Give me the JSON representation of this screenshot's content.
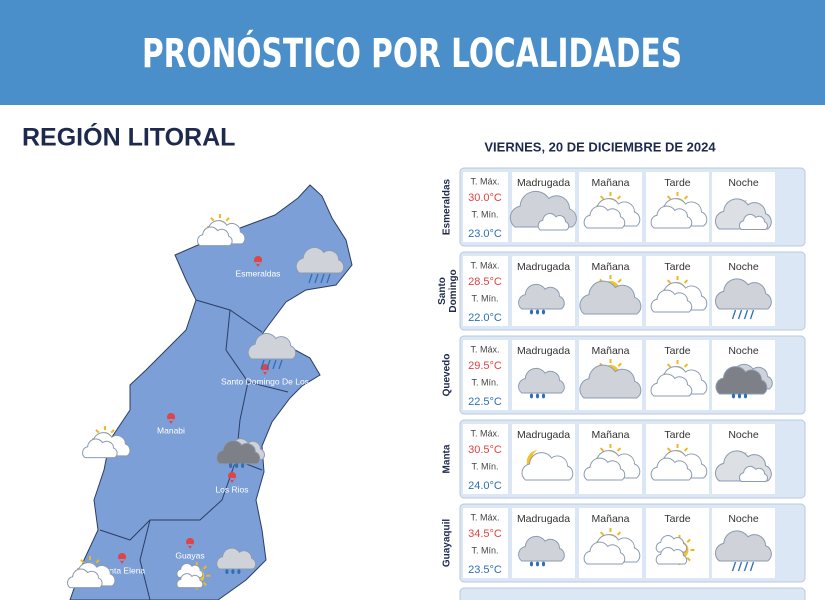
{
  "header": {
    "title": "PRONÓSTICO POR LOCALIDADES"
  },
  "region": {
    "title": "REGIÓN LITORAL"
  },
  "map": {
    "labels": [
      "Esmeraldas",
      "Santo Domingo De Los",
      "Manabi",
      "Los Rios",
      "Guayas",
      "Santa Elena"
    ]
  },
  "table": {
    "date": "VIERNES, 20 DE DICIEMBRE DE 2024",
    "periods": [
      "Madrugada",
      "Mañana",
      "Tarde",
      "Noche"
    ],
    "max_label": "T. Máx.",
    "min_label": "T. Mín.",
    "rows": [
      {
        "city": "Esmeraldas",
        "max": "30.0°C",
        "min": "23.0°C"
      },
      {
        "city": "Santo Domingo",
        "max": "28.5°C",
        "min": "22.0°C"
      },
      {
        "city": "Quevedo",
        "max": "29.5°C",
        "min": "22.5°C"
      },
      {
        "city": "Manta",
        "max": "30.5°C",
        "min": "24.0°C"
      },
      {
        "city": "Guayaquil",
        "max": "34.5°C",
        "min": "23.5°C"
      }
    ]
  }
}
